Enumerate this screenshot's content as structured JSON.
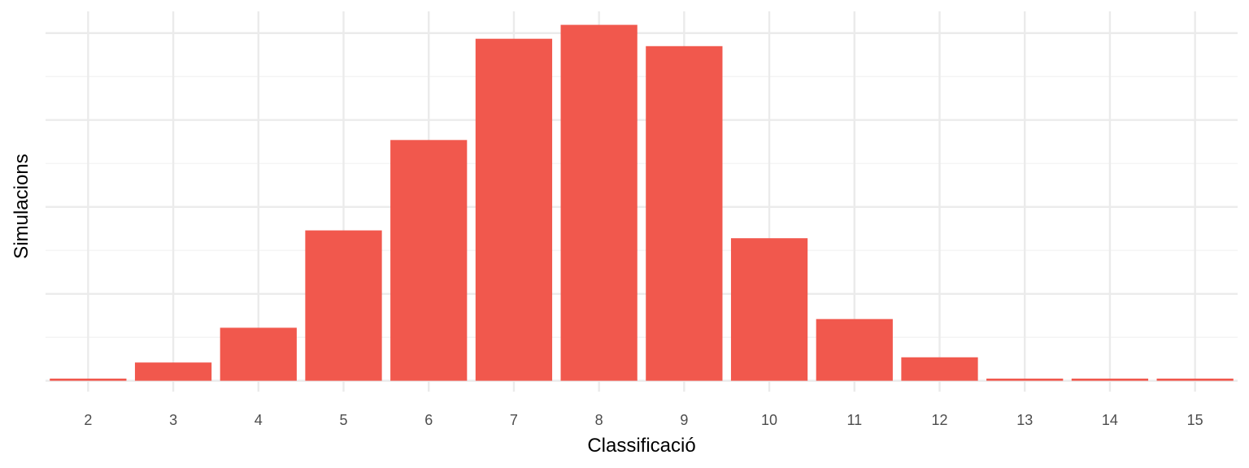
{
  "chart_data": {
    "type": "bar",
    "xlabel": "Classificació",
    "ylabel": "Simulacions",
    "categories": [
      "2",
      "3",
      "4",
      "5",
      "6",
      "7",
      "8",
      "9",
      "10",
      "11",
      "12",
      "13",
      "14",
      "15"
    ],
    "values": [
      0.5,
      4.2,
      12.2,
      34.6,
      55.4,
      78.7,
      81.9,
      77.0,
      32.8,
      14.2,
      5.4,
      0.5,
      0.5,
      0.5
    ],
    "ylim": [
      -2.5,
      85
    ],
    "y_major_ticks": [
      0,
      20,
      40,
      60,
      80
    ],
    "y_minor_ticks": [
      10,
      30,
      50,
      70
    ],
    "y_tick_labels_shown": false,
    "grid": true,
    "colors": {
      "bar": "#F1584D",
      "grid_major": "#EBEBEB",
      "grid_minor": "#F2F2F2"
    }
  }
}
